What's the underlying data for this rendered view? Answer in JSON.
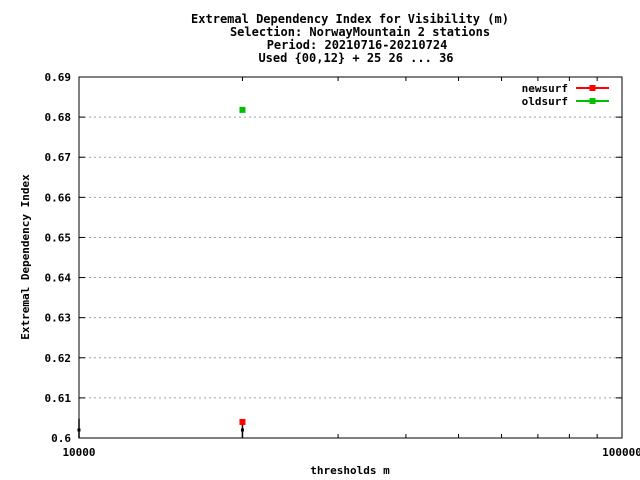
{
  "chart_data": {
    "type": "scatter",
    "title_lines": [
      "Extremal Dependency Index  for Visibility (m)",
      "Selection: NorwayMountain      2 stations",
      "Period: 20210716-20210724",
      "Used {00,12} + 25 26 ... 36"
    ],
    "xlabel": "thresholds m",
    "ylabel": "Extremal Dependency Index",
    "x_scale": "log",
    "xlim": [
      10000,
      100000
    ],
    "ylim": [
      0.6,
      0.69
    ],
    "x_ticks": [
      {
        "value": 10000,
        "label": "10000"
      },
      {
        "value": 100000,
        "label": "100000"
      }
    ],
    "x_minor_ticks": [
      20000,
      30000,
      40000,
      50000,
      60000,
      70000,
      80000,
      90000
    ],
    "y_ticks": [
      {
        "value": 0.6,
        "label": "0.6"
      },
      {
        "value": 0.61,
        "label": "0.61"
      },
      {
        "value": 0.62,
        "label": "0.62"
      },
      {
        "value": 0.63,
        "label": "0.63"
      },
      {
        "value": 0.64,
        "label": "0.64"
      },
      {
        "value": 0.65,
        "label": "0.65"
      },
      {
        "value": 0.66,
        "label": "0.66"
      },
      {
        "value": 0.67,
        "label": "0.67"
      },
      {
        "value": 0.68,
        "label": "0.68"
      },
      {
        "value": 0.69,
        "label": "0.69"
      }
    ],
    "grid": "horizontal dotted",
    "legend_position": "top-right",
    "series": [
      {
        "name": "newsurf",
        "color": "#ff0000",
        "x": [
          20000
        ],
        "y": [
          0.604
        ]
      },
      {
        "name": "oldsurf",
        "color": "#00c000",
        "x": [
          20000
        ],
        "y": [
          0.6818
        ]
      }
    ],
    "error_bars": [
      {
        "x": 10000,
        "y_low": 0.6,
        "y_high": 0.6048,
        "y_marker": 0.602
      },
      {
        "x": 20000,
        "y_low": 0.6,
        "y_high": 0.6045,
        "y_marker": 0.602
      }
    ]
  }
}
